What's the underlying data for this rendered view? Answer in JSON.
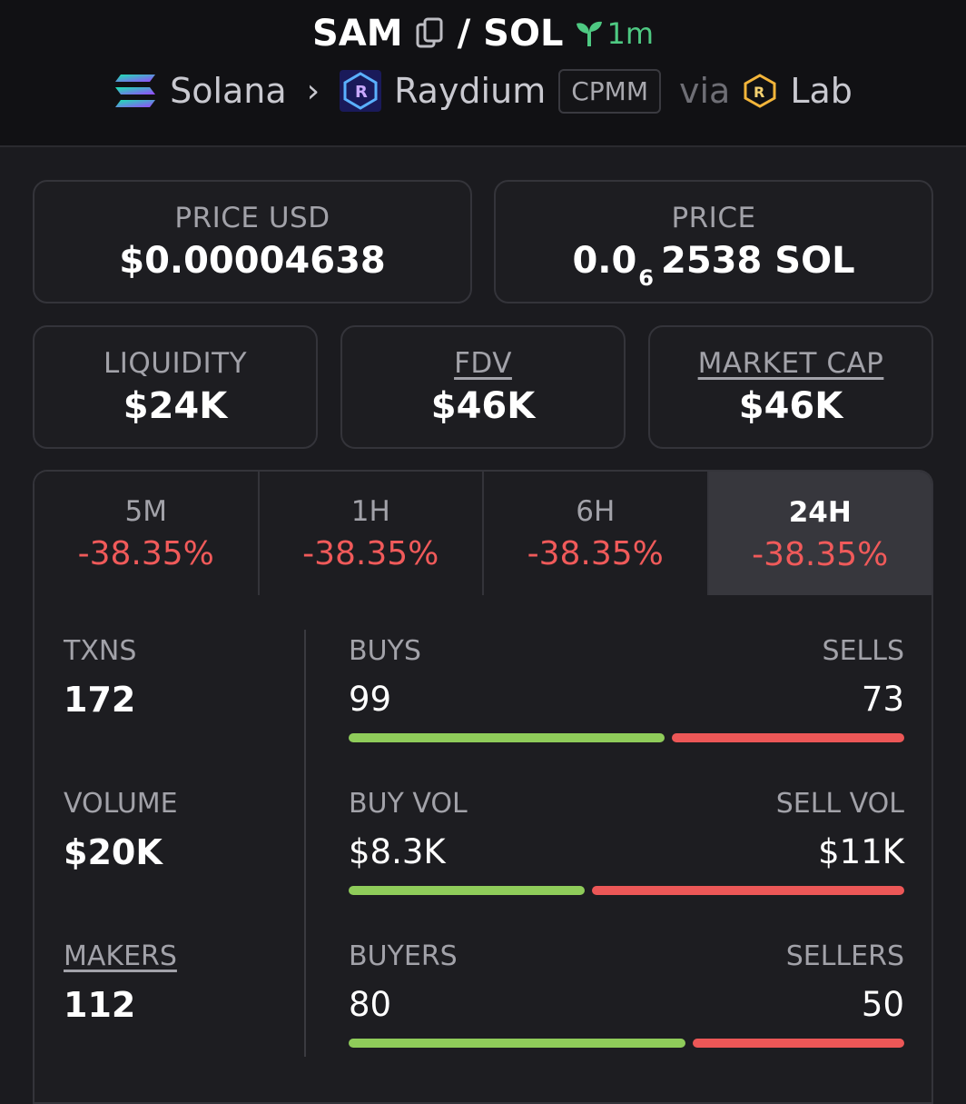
{
  "header": {
    "base": "SAM",
    "slash": "/",
    "quote": "SOL",
    "age": "1m",
    "chain": "Solana",
    "dex": "Raydium",
    "pool_type": "CPMM",
    "via": "via",
    "launchpad": "Lab"
  },
  "price_usd": {
    "label": "PRICE USD",
    "value": "$0.00004638"
  },
  "price_native": {
    "label": "PRICE",
    "prefix": "0.0",
    "zeros": "6",
    "suffix": "2538 SOL"
  },
  "liquidity": {
    "label": "LIQUIDITY",
    "value": "$24K"
  },
  "fdv": {
    "label": "FDV",
    "value": "$46K"
  },
  "market_cap": {
    "label": "MARKET CAP",
    "value": "$46K"
  },
  "tabs": [
    {
      "label": "5M",
      "change": "-38.35%"
    },
    {
      "label": "1H",
      "change": "-38.35%"
    },
    {
      "label": "6H",
      "change": "-38.35%"
    },
    {
      "label": "24H",
      "change": "-38.35%",
      "active": true
    }
  ],
  "stats": {
    "txns": {
      "label": "TXNS",
      "value": "172"
    },
    "volume": {
      "label": "VOLUME",
      "value": "$20K"
    },
    "makers": {
      "label": "MAKERS",
      "value": "112"
    }
  },
  "breakdown": {
    "txns": {
      "left_label": "BUYS",
      "right_label": "SELLS",
      "left_value": "99",
      "right_value": "73",
      "buy_fraction": 0.576
    },
    "volume": {
      "left_label": "BUY VOL",
      "right_label": "SELL VOL",
      "left_value": "$8.3K",
      "right_value": "$11K",
      "buy_fraction": 0.43
    },
    "makers": {
      "left_label": "BUYERS",
      "right_label": "SELLERS",
      "left_value": "80",
      "right_value": "50",
      "buy_fraction": 0.615
    }
  },
  "colors": {
    "positive": "#8fcc5a",
    "negative": "#ec5757",
    "age": "#4ec982"
  }
}
